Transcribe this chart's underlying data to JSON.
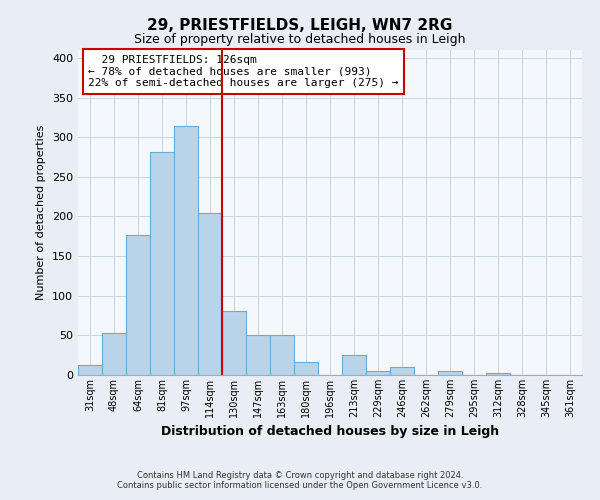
{
  "title": "29, PRIESTFIELDS, LEIGH, WN7 2RG",
  "subtitle": "Size of property relative to detached houses in Leigh",
  "xlabel": "Distribution of detached houses by size in Leigh",
  "ylabel": "Number of detached properties",
  "footer_line1": "Contains HM Land Registry data © Crown copyright and database right 2024.",
  "footer_line2": "Contains public sector information licensed under the Open Government Licence v3.0.",
  "categories": [
    "31sqm",
    "48sqm",
    "64sqm",
    "81sqm",
    "97sqm",
    "114sqm",
    "130sqm",
    "147sqm",
    "163sqm",
    "180sqm",
    "196sqm",
    "213sqm",
    "229sqm",
    "246sqm",
    "262sqm",
    "279sqm",
    "295sqm",
    "312sqm",
    "328sqm",
    "345sqm",
    "361sqm"
  ],
  "values": [
    13,
    53,
    177,
    281,
    314,
    204,
    81,
    50,
    50,
    16,
    0,
    25,
    5,
    10,
    0,
    5,
    0,
    2,
    0,
    0,
    0
  ],
  "bar_color": "#b8d4ea",
  "bar_edge_color": "#6aaad4",
  "marker_line_color": "#cc0000",
  "annotation_box_edge_color": "#cc0000",
  "ylim": [
    0,
    410
  ],
  "yticks": [
    0,
    50,
    100,
    150,
    200,
    250,
    300,
    350,
    400
  ],
  "background_color": "#e8eef4",
  "plot_bg_color": "#f4f8fc",
  "grid_color": "#c8d4e0"
}
